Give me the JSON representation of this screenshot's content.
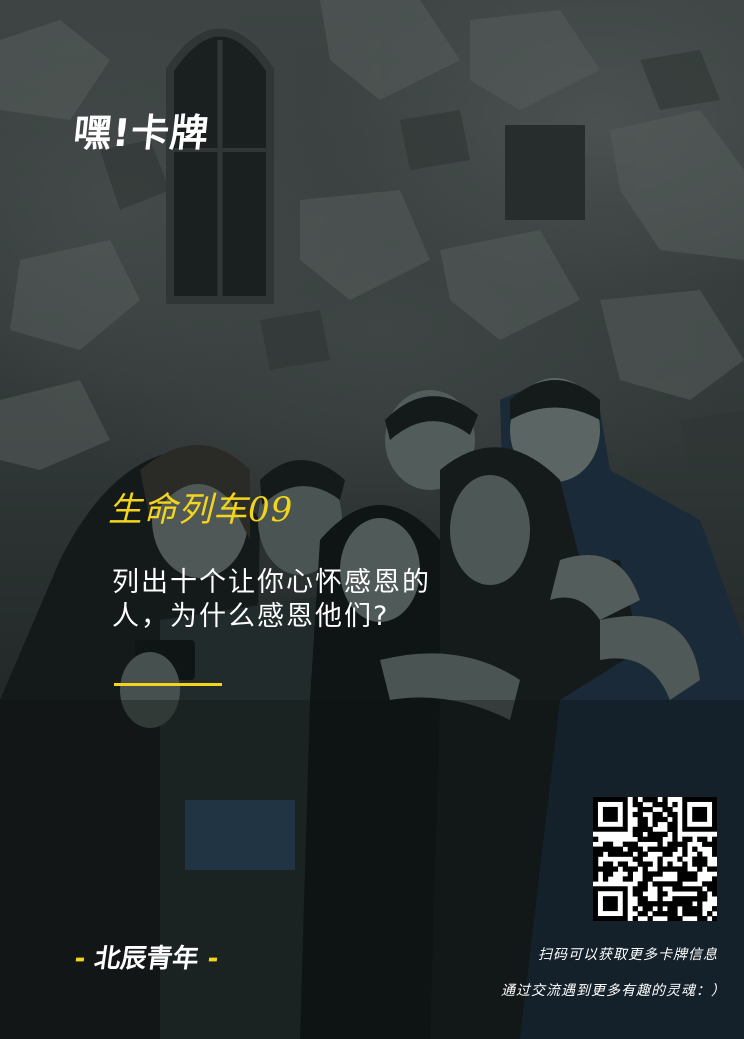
{
  "brand": {
    "logo_text": "嘿!卡牌"
  },
  "card": {
    "title": "生命列车09",
    "question_lines": [
      "列出十个让你心怀感恩的",
      "人，为什么感恩他们?"
    ]
  },
  "footer": {
    "brand_dash_left": "-",
    "brand_name": "北辰青年",
    "brand_dash_right": "-",
    "scan_text": "扫码可以获取更多卡牌信息",
    "slogan": "通过交流遇到更多有趣的灵魂：）"
  },
  "colors": {
    "accent": "#f4d51c",
    "text": "#ffffff",
    "background": "#1c2322"
  },
  "icons": {
    "qr": "qr-code-icon"
  }
}
